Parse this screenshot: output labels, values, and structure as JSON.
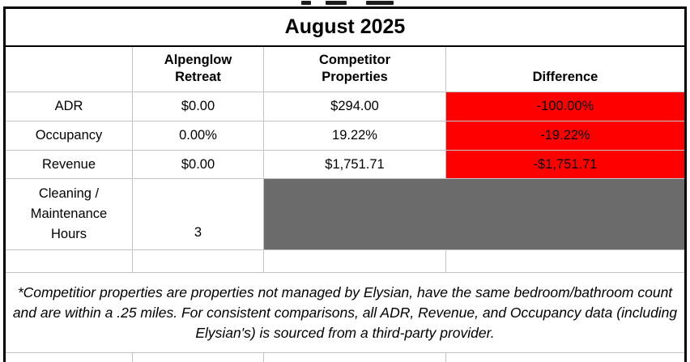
{
  "title": "August 2025",
  "columns": {
    "property": "Alpenglow\nRetreat",
    "competitor": "Competitor\nProperties",
    "difference": "Difference"
  },
  "rows": [
    {
      "label": "ADR",
      "property": "$0.00",
      "competitor": "$294.00",
      "difference": "-100.00%"
    },
    {
      "label": "Occupancy",
      "property": "0.00%",
      "competitor": "19.22%",
      "difference": "-19.22%"
    },
    {
      "label": "Revenue",
      "property": "$0.00",
      "competitor": "$1,751.71",
      "difference": "-$1,751.71"
    }
  ],
  "cleaning_row": {
    "label": "Cleaning /\nMaintenance\nHours",
    "value": "3"
  },
  "footnote": "*Competitior properties are properties not managed by Elysian, have the same bedroom/bathroom count and are within a .25 miles. For consistent comparisons, all ADR, Revenue, and Occupancy data (including Elysian's) is sourced from a third-party provider.",
  "colors": {
    "negative_bg": "#ff0000",
    "blocked_bg": "#6b6b6b"
  }
}
